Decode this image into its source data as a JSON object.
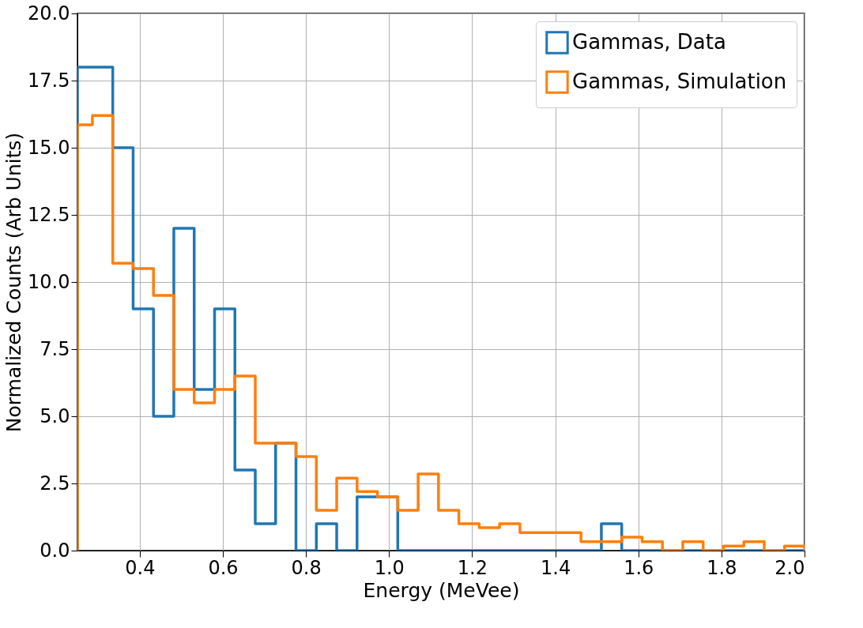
{
  "chart_data": {
    "type": "histogram",
    "xlabel": "Energy (MeVee)",
    "ylabel": "Normalized Counts (Arb Units)",
    "bins": [
      0.25,
      0.286,
      0.335,
      0.384,
      0.433,
      0.482,
      0.531,
      0.58,
      0.629,
      0.678,
      0.727,
      0.776,
      0.825,
      0.874,
      0.923,
      0.972,
      1.021,
      1.07,
      1.119,
      1.168,
      1.217,
      1.266,
      1.315,
      1.364,
      1.413,
      1.462,
      1.511,
      1.56,
      1.609,
      1.658,
      1.707,
      1.756,
      1.805,
      1.854,
      1.903,
      1.952,
      2.0
    ],
    "series": [
      {
        "name": "Gammas, Data",
        "color": "#1f77b4",
        "values": [
          18,
          18,
          15,
          9,
          5,
          12,
          6,
          9,
          3,
          1,
          4,
          0,
          1,
          0,
          2,
          2,
          0,
          0,
          0,
          0,
          0,
          0,
          0,
          0,
          0,
          0,
          1,
          0,
          0,
          0,
          0,
          0,
          0,
          0,
          0,
          0
        ]
      },
      {
        "name": "Gammas, Simulation",
        "color": "#ff7f0e",
        "values": [
          15.85,
          16.2,
          10.7,
          10.5,
          9.5,
          6.0,
          5.5,
          6.0,
          6.5,
          4.0,
          4.0,
          3.5,
          1.5,
          2.7,
          2.2,
          2.0,
          1.5,
          2.85,
          1.5,
          1.0,
          0.85,
          1.0,
          0.67,
          0.67,
          0.67,
          0.33,
          0.33,
          0.5,
          0.33,
          0,
          0.33,
          0,
          0.17,
          0.33,
          0,
          0.17
        ]
      }
    ],
    "xlim": [
      0.25,
      2.0
    ],
    "xticks": [
      0.4,
      0.6,
      0.8,
      {
        "value": 1.0,
        "label": "1.0"
      },
      1.2,
      1.4,
      1.6,
      1.8,
      {
        "value": 2.0,
        "label": "2.0"
      }
    ],
    "ylim": [
      0,
      20
    ],
    "yticks": [
      {
        "value": 0,
        "label": "0.0"
      },
      2.5,
      {
        "value": 5,
        "label": "5.0"
      },
      7.5,
      {
        "value": 10,
        "label": "10.0"
      },
      12.5,
      {
        "value": 15,
        "label": "15.0"
      },
      17.5,
      {
        "value": 20,
        "label": "20.0"
      }
    ],
    "grid": true,
    "legend": "top right"
  }
}
